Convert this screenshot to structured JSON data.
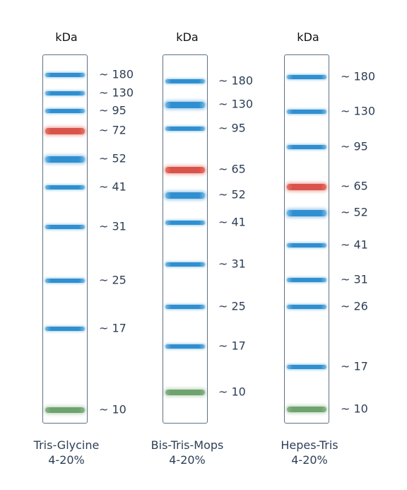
{
  "ladders": [
    {
      "unit": "kDa",
      "buffer": "Tris-Glycine",
      "gel": "4-20%",
      "bands": [
        {
          "label": "~ 180",
          "kda": 180,
          "color": "blue"
        },
        {
          "label": "~ 130",
          "kda": 130,
          "color": "blue"
        },
        {
          "label": "~ 95",
          "kda": 95,
          "color": "blue"
        },
        {
          "label": "~ 72",
          "kda": 72,
          "color": "red"
        },
        {
          "label": "~ 52",
          "kda": 52,
          "color": "blue"
        },
        {
          "label": "~ 41",
          "kda": 41,
          "color": "blue"
        },
        {
          "label": "~ 31",
          "kda": 31,
          "color": "blue"
        },
        {
          "label": "~ 25",
          "kda": 25,
          "color": "blue"
        },
        {
          "label": "~ 17",
          "kda": 17,
          "color": "blue"
        },
        {
          "label": "~ 10",
          "kda": 10,
          "color": "green"
        }
      ]
    },
    {
      "unit": "kDa",
      "buffer": "Bis-Tris-Mops",
      "gel": "4-20%",
      "bands": [
        {
          "label": "~ 180",
          "kda": 180,
          "color": "blue"
        },
        {
          "label": "~ 130",
          "kda": 130,
          "color": "blue"
        },
        {
          "label": "~ 95",
          "kda": 95,
          "color": "blue"
        },
        {
          "label": "~ 65",
          "kda": 65,
          "color": "red"
        },
        {
          "label": "~ 52",
          "kda": 52,
          "color": "blue"
        },
        {
          "label": "~ 41",
          "kda": 41,
          "color": "blue"
        },
        {
          "label": "~ 31",
          "kda": 31,
          "color": "blue"
        },
        {
          "label": "~ 25",
          "kda": 25,
          "color": "blue"
        },
        {
          "label": "~ 17",
          "kda": 17,
          "color": "blue"
        },
        {
          "label": "~ 10",
          "kda": 10,
          "color": "green"
        }
      ]
    },
    {
      "unit": "kDa",
      "buffer": "Hepes-Tris",
      "gel": "4-20%",
      "bands": [
        {
          "label": "~ 180",
          "kda": 180,
          "color": "blue"
        },
        {
          "label": "~ 130",
          "kda": 130,
          "color": "blue"
        },
        {
          "label": "~ 95",
          "kda": 95,
          "color": "blue"
        },
        {
          "label": "~ 65",
          "kda": 65,
          "color": "red"
        },
        {
          "label": "~ 52",
          "kda": 52,
          "color": "blue"
        },
        {
          "label": "~ 41",
          "kda": 41,
          "color": "blue"
        },
        {
          "label": "~ 31",
          "kda": 31,
          "color": "blue"
        },
        {
          "label": "~ 26",
          "kda": 26,
          "color": "blue"
        },
        {
          "label": "~ 17",
          "kda": 17,
          "color": "blue"
        },
        {
          "label": "~ 10",
          "kda": 10,
          "color": "green"
        }
      ]
    }
  ],
  "colors": {
    "blue": "#2f8fd0",
    "red": "#d9534a",
    "green": "#6ea26e",
    "frame": "#5d7186",
    "text": "#2d3f55"
  }
}
